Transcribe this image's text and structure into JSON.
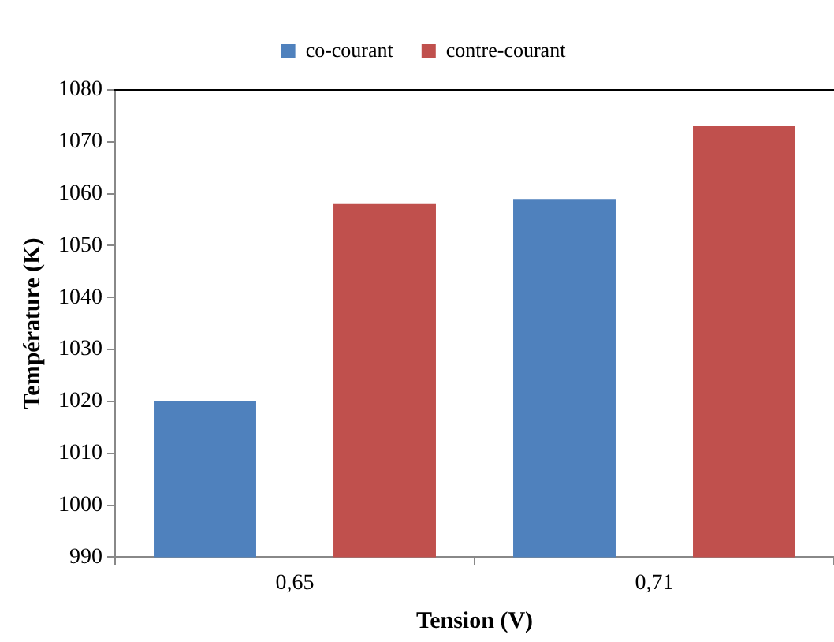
{
  "chart_data": {
    "type": "bar",
    "xlabel": "Tension (V)",
    "ylabel": "Température (K)",
    "categories": [
      "0,65",
      "0,71"
    ],
    "series": [
      {
        "name": "co-courant",
        "color": "#4f81bd",
        "values": [
          1020,
          1059
        ]
      },
      {
        "name": "contre-courant",
        "color": "#c0504d",
        "values": [
          1058,
          1073
        ]
      }
    ],
    "ylim": [
      990,
      1080
    ],
    "yticks": [
      990,
      1000,
      1010,
      1020,
      1030,
      1040,
      1050,
      1060,
      1070,
      1080
    ],
    "grid": false,
    "legend": "top"
  }
}
